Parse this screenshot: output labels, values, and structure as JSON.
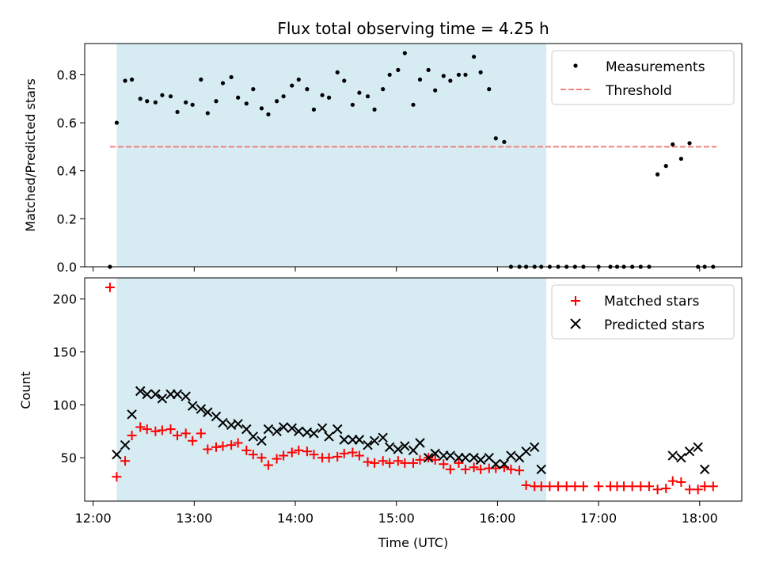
{
  "figure": {
    "title": "Flux total observing time = 4.25 h",
    "shade_start": "12:14",
    "shade_end": "16:29",
    "shade_color": "#add8e6",
    "x_ticks": [
      "12:00",
      "13:00",
      "14:00",
      "15:00",
      "16:00",
      "17:00",
      "18:00"
    ],
    "xlabel": "Time (UTC)"
  },
  "chart_data": [
    {
      "type": "scatter",
      "panel": "top",
      "ylabel": "Matched/Predicted stars",
      "ylim": [
        0,
        0.93
      ],
      "y_ticks": [
        "0.0",
        "0.2",
        "0.4",
        "0.6",
        "0.8"
      ],
      "y_tick_values": [
        0,
        0.2,
        0.4,
        0.6,
        0.8
      ],
      "legend": "top-right",
      "threshold": {
        "name": "Threshold",
        "value": 0.5,
        "x_start": "12:10",
        "x_end": "18:10",
        "color": "#f08080"
      },
      "series": [
        {
          "name": "Measurements",
          "color": "#000000",
          "x": [
            "12:10",
            "12:14",
            "12:19",
            "12:23",
            "12:28",
            "12:32",
            "12:37",
            "12:41",
            "12:46",
            "12:50",
            "12:55",
            "12:59",
            "13:04",
            "13:08",
            "13:13",
            "13:17",
            "13:22",
            "13:26",
            "13:31",
            "13:35",
            "13:40",
            "13:44",
            "13:49",
            "13:53",
            "13:58",
            "14:02",
            "14:07",
            "14:11",
            "14:16",
            "14:20",
            "14:25",
            "14:29",
            "14:34",
            "14:38",
            "14:43",
            "14:47",
            "14:52",
            "14:56",
            "15:01",
            "15:05",
            "15:10",
            "15:14",
            "15:19",
            "15:23",
            "15:28",
            "15:32",
            "15:37",
            "15:41",
            "15:46",
            "15:50",
            "15:55",
            "15:59",
            "16:04",
            "16:08",
            "16:13",
            "16:17",
            "16:22",
            "16:26",
            "16:31",
            "16:36",
            "16:41",
            "16:46",
            "16:51",
            "17:00",
            "17:07",
            "17:11",
            "17:15",
            "17:20",
            "17:25",
            "17:30",
            "17:35",
            "17:40",
            "17:44",
            "17:49",
            "17:54",
            "17:59",
            "18:03",
            "18:08"
          ],
          "y": [
            0.0,
            0.6,
            0.775,
            0.78,
            0.7,
            0.69,
            0.685,
            0.715,
            0.71,
            0.645,
            0.685,
            0.675,
            0.78,
            0.64,
            0.69,
            0.765,
            0.79,
            0.705,
            0.68,
            0.74,
            0.66,
            0.635,
            0.69,
            0.71,
            0.755,
            0.78,
            0.74,
            0.655,
            0.715,
            0.705,
            0.81,
            0.775,
            0.675,
            0.725,
            0.71,
            0.655,
            0.74,
            0.8,
            0.82,
            0.89,
            0.675,
            0.78,
            0.82,
            0.735,
            0.795,
            0.775,
            0.8,
            0.8,
            0.875,
            0.81,
            0.74,
            0.535,
            0.52,
            0.0,
            0.0,
            0.0,
            0.0,
            0.0,
            0.0,
            0.0,
            0.0,
            0.0,
            0.0,
            0.0,
            0.0,
            0.0,
            0.0,
            0.0,
            0.0,
            0.0,
            0.385,
            0.42,
            0.51,
            0.45,
            0.515,
            0.0,
            0.0,
            0.0
          ]
        }
      ]
    },
    {
      "type": "scatter",
      "panel": "bottom",
      "ylabel": "Count",
      "ylim": [
        9,
        220
      ],
      "y_ticks": [
        "50",
        "100",
        "150",
        "200"
      ],
      "y_tick_values": [
        50,
        100,
        150,
        200
      ],
      "legend": "top-right",
      "series": [
        {
          "name": "Matched stars",
          "color": "#ff0000",
          "marker": "plus",
          "x": [
            "12:10",
            "12:14",
            "12:19",
            "12:23",
            "12:28",
            "12:32",
            "12:37",
            "12:41",
            "12:46",
            "12:50",
            "12:55",
            "12:59",
            "13:04",
            "13:08",
            "13:13",
            "13:17",
            "13:22",
            "13:26",
            "13:31",
            "13:35",
            "13:40",
            "13:44",
            "13:49",
            "13:53",
            "13:58",
            "14:02",
            "14:07",
            "14:11",
            "14:16",
            "14:20",
            "14:25",
            "14:29",
            "14:34",
            "14:38",
            "14:43",
            "14:47",
            "14:52",
            "14:56",
            "15:01",
            "15:05",
            "15:10",
            "15:14",
            "15:19",
            "15:23",
            "15:28",
            "15:32",
            "15:37",
            "15:41",
            "15:46",
            "15:50",
            "15:55",
            "15:59",
            "16:04",
            "16:08",
            "16:13",
            "16:17",
            "16:22",
            "16:26",
            "16:31",
            "16:36",
            "16:41",
            "16:46",
            "16:51",
            "17:00",
            "17:07",
            "17:11",
            "17:15",
            "17:20",
            "17:25",
            "17:30",
            "17:35",
            "17:40",
            "17:44",
            "17:49",
            "17:54",
            "17:59",
            "18:03",
            "18:08"
          ],
          "y": [
            211,
            32,
            47,
            71,
            79,
            77,
            75,
            76,
            77,
            71,
            73,
            66,
            73,
            58,
            60,
            61,
            62,
            64,
            57,
            53,
            50,
            43,
            49,
            52,
            55,
            57,
            56,
            53,
            50,
            50,
            51,
            54,
            55,
            52,
            46,
            45,
            47,
            45,
            47,
            45,
            45,
            48,
            50,
            48,
            44,
            39,
            45,
            39,
            41,
            39,
            40,
            40,
            41,
            39,
            38,
            24,
            23,
            23,
            23,
            23,
            23,
            23,
            23,
            23,
            23,
            23,
            23,
            23,
            23,
            23,
            20,
            21,
            28,
            27,
            20,
            20,
            23,
            23
          ]
        },
        {
          "name": "Predicted stars",
          "color": "#000000",
          "marker": "x",
          "x": [
            "12:14",
            "12:19",
            "12:23",
            "12:28",
            "12:32",
            "12:37",
            "12:41",
            "12:46",
            "12:50",
            "12:55",
            "12:59",
            "13:04",
            "13:08",
            "13:13",
            "13:17",
            "13:22",
            "13:26",
            "13:31",
            "13:35",
            "13:40",
            "13:44",
            "13:49",
            "13:53",
            "13:58",
            "14:02",
            "14:07",
            "14:11",
            "14:16",
            "14:20",
            "14:25",
            "14:29",
            "14:34",
            "14:38",
            "14:43",
            "14:47",
            "14:52",
            "14:56",
            "15:01",
            "15:05",
            "15:10",
            "15:14",
            "15:19",
            "15:23",
            "15:28",
            "15:32",
            "15:37",
            "15:41",
            "15:46",
            "15:50",
            "15:55",
            "15:59",
            "16:04",
            "16:08",
            "16:13",
            "16:17",
            "16:22",
            "16:26",
            "17:44",
            "17:49",
            "17:54",
            "17:59",
            "18:03"
          ],
          "y": [
            53,
            62,
            91,
            113,
            110,
            110,
            106,
            110,
            110,
            108,
            99,
            96,
            93,
            89,
            83,
            81,
            82,
            77,
            70,
            66,
            77,
            75,
            79,
            78,
            75,
            74,
            73,
            78,
            70,
            77,
            67,
            67,
            67,
            62,
            66,
            69,
            60,
            58,
            61,
            57,
            64,
            50,
            54,
            52,
            52,
            50,
            50,
            50,
            48,
            50,
            44,
            44,
            52,
            50,
            56,
            60,
            39,
            52,
            50,
            56,
            60,
            39
          ]
        }
      ]
    }
  ]
}
